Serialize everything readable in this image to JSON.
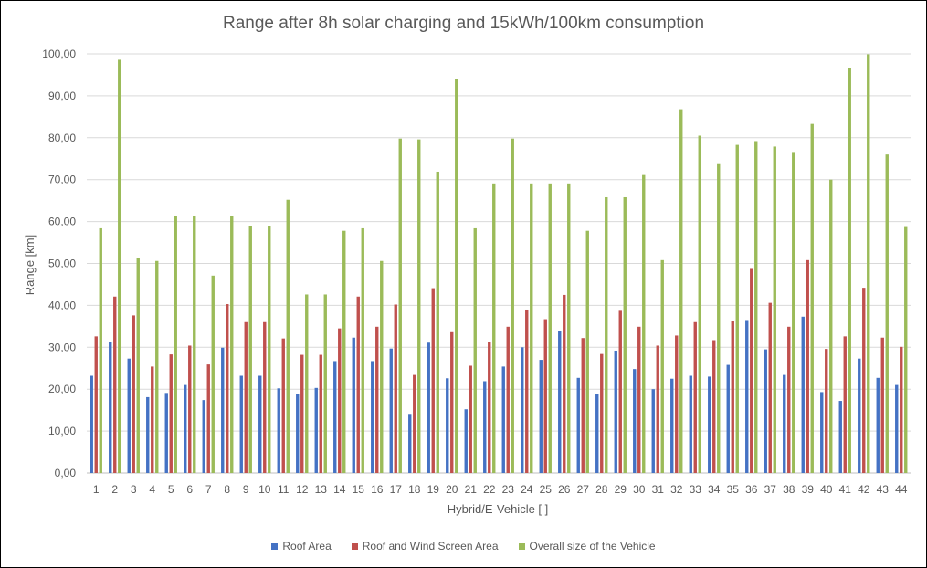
{
  "chart_data": {
    "type": "bar",
    "title": "Range after 8h solar charging and 15kWh/100km consumption",
    "xlabel": "Hybrid/E-Vehicle [ ]",
    "ylabel": "Range [km]",
    "ylim": [
      0,
      100
    ],
    "ytick_step": 10,
    "ytick_labels": [
      "0,00",
      "10,00",
      "20,00",
      "30,00",
      "40,00",
      "50,00",
      "60,00",
      "70,00",
      "80,00",
      "90,00",
      "100,00"
    ],
    "grid": true,
    "legend_position": "bottom",
    "categories": [
      "1",
      "2",
      "3",
      "4",
      "5",
      "6",
      "7",
      "8",
      "9",
      "10",
      "11",
      "12",
      "13",
      "14",
      "15",
      "16",
      "17",
      "18",
      "19",
      "20",
      "21",
      "22",
      "23",
      "24",
      "25",
      "26",
      "27",
      "28",
      "29",
      "30",
      "31",
      "32",
      "33",
      "34",
      "35",
      "36",
      "37",
      "38",
      "39",
      "40",
      "41",
      "42",
      "43",
      "44"
    ],
    "series": [
      {
        "name": "Roof Area",
        "color": "#4472c4",
        "values": [
          23.2,
          31.2,
          27.3,
          18.1,
          19.1,
          21.0,
          17.4,
          29.9,
          23.2,
          23.2,
          20.2,
          18.8,
          20.3,
          26.7,
          32.3,
          26.7,
          29.7,
          14.1,
          31.1,
          22.6,
          15.2,
          21.9,
          25.4,
          30.0,
          27.0,
          33.9,
          22.7,
          18.9,
          29.2,
          24.8,
          20.0,
          22.5,
          23.2,
          23.0,
          25.8,
          36.5,
          29.5,
          23.4,
          37.3,
          19.3,
          17.2,
          27.3,
          22.7,
          21.0
        ]
      },
      {
        "name": "Roof and Wind Screen Area",
        "color": "#c0504d",
        "values": [
          32.6,
          42.1,
          37.6,
          25.4,
          28.3,
          30.4,
          25.9,
          40.3,
          36.0,
          36.0,
          32.1,
          28.2,
          28.2,
          34.5,
          42.1,
          34.9,
          40.2,
          23.4,
          44.1,
          33.6,
          25.6,
          31.2,
          34.9,
          39.0,
          36.7,
          42.5,
          32.2,
          28.4,
          38.7,
          34.9,
          30.4,
          32.8,
          36.0,
          31.7,
          36.3,
          48.7,
          40.6,
          34.9,
          50.8,
          29.6,
          32.6,
          44.2,
          32.3,
          30.1
        ]
      },
      {
        "name": "Overall size of the Vehicle",
        "color": "#9bbb59",
        "values": [
          58.4,
          98.6,
          51.2,
          50.6,
          61.3,
          61.3,
          47.1,
          61.3,
          59.0,
          59.0,
          65.2,
          42.6,
          42.6,
          57.8,
          58.4,
          50.6,
          79.8,
          79.6,
          71.9,
          94.1,
          58.4,
          69.1,
          79.8,
          69.1,
          69.1,
          69.1,
          57.8,
          65.8,
          65.8,
          71.1,
          50.8,
          86.8,
          80.5,
          73.7,
          78.3,
          79.2,
          77.9,
          76.6,
          83.3,
          70.0,
          96.6,
          99.9,
          76.0,
          58.7
        ]
      }
    ]
  }
}
